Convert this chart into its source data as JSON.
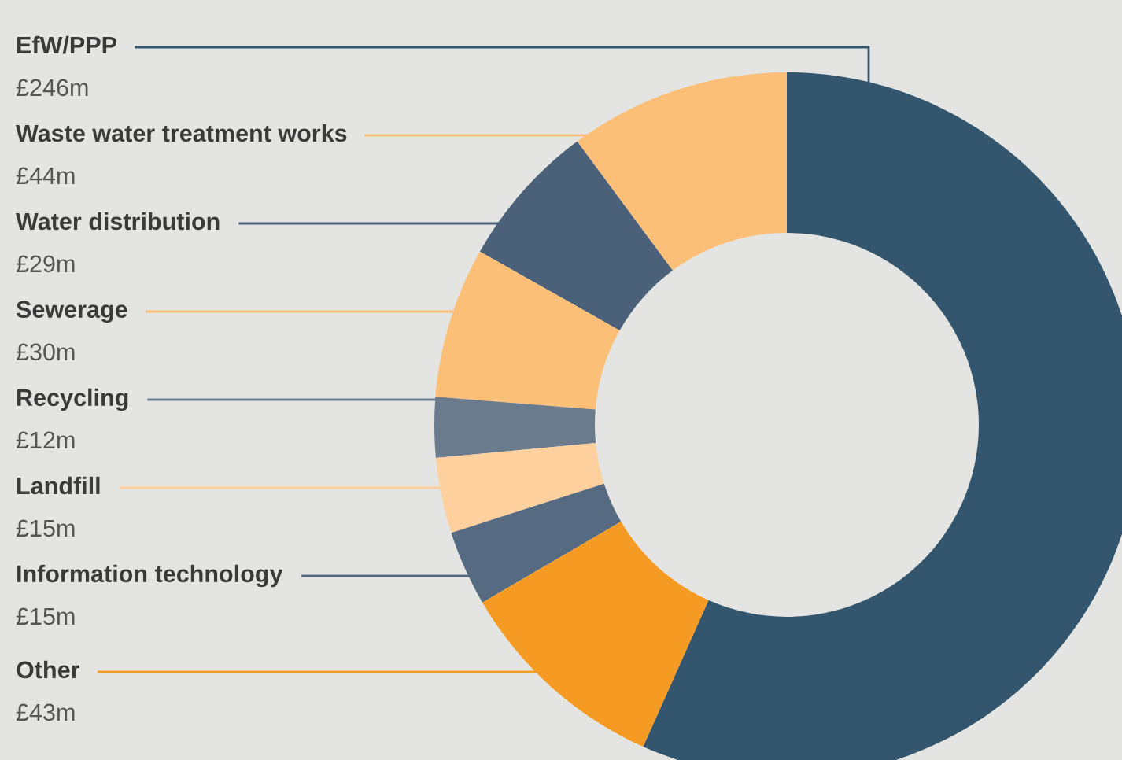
{
  "chart_data": {
    "type": "donut",
    "categories": [
      "EfW/PPP",
      "Waste water treatment works",
      "Water distribution",
      "Sewerage",
      "Recycling",
      "Landfill",
      "Information technology",
      "Other"
    ],
    "values": [
      246,
      44,
      29,
      30,
      12,
      15,
      15,
      43
    ],
    "value_labels": [
      "£246m",
      "£44m",
      "£29m",
      "£30m",
      "£12m",
      "£15m",
      "£15m",
      "£43m"
    ],
    "colors": [
      "#33566e",
      "#fbbf78",
      "#4a6179",
      "#fbbf78",
      "#6b7b8e",
      "#fdd09e",
      "#566b82",
      "#f59a23"
    ]
  }
}
